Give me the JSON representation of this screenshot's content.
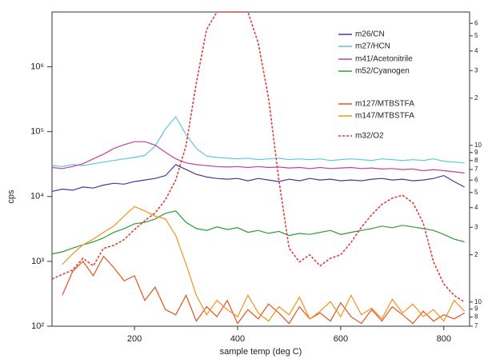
{
  "chart_data": {
    "type": "line",
    "xlabel": "sample temp (deg C)",
    "ylabel": "cps",
    "x": [
      40,
      60,
      80,
      100,
      120,
      140,
      160,
      180,
      200,
      220,
      240,
      260,
      280,
      300,
      320,
      340,
      360,
      380,
      400,
      420,
      440,
      460,
      480,
      500,
      520,
      540,
      560,
      580,
      600,
      620,
      640,
      660,
      680,
      700,
      720,
      740,
      760,
      780,
      800,
      820,
      840
    ],
    "xlim": [
      40,
      850
    ],
    "xticks": [
      200,
      400,
      600,
      800
    ],
    "ylim": [
      100,
      7000000
    ],
    "ylog": true,
    "yticks": [
      {
        "value": 100,
        "label": "10²"
      },
      {
        "value": 1000,
        "label": "10³"
      },
      {
        "value": 10000,
        "label": "10⁴"
      },
      {
        "value": 100000,
        "label": "10⁵"
      },
      {
        "value": 1000000,
        "label": "10⁶"
      }
    ],
    "y2lim": [
      0.7,
      71
    ],
    "y2log": true,
    "y2ticks": [
      {
        "value": 0.7,
        "label": "7"
      },
      {
        "value": 0.8,
        "label": "8"
      },
      {
        "value": 0.9,
        "label": "9"
      },
      {
        "value": 1,
        "label": "10"
      },
      2,
      3,
      4,
      5,
      6,
      7,
      8,
      9,
      {
        "value": 10,
        "label": "10"
      },
      {
        "value": 20,
        "label": "2"
      },
      {
        "value": 30,
        "label": "3"
      },
      {
        "value": 40,
        "label": "4"
      },
      {
        "value": 50,
        "label": "5"
      },
      {
        "value": 60,
        "label": "6"
      }
    ],
    "series": [
      {
        "name": "m26/CN",
        "color": "#3b3d9c",
        "values": [
          12000,
          13000,
          12500,
          14000,
          13500,
          15000,
          16000,
          15500,
          17000,
          18000,
          19000,
          21000,
          31000,
          26000,
          22000,
          20000,
          19000,
          18500,
          19000,
          17500,
          19000,
          18000,
          17000,
          18500,
          17500,
          19000,
          18000,
          18500,
          17500,
          18000,
          17500,
          18500,
          19000,
          18000,
          18500,
          17500,
          18000,
          19000,
          21000,
          17000,
          14000
        ]
      },
      {
        "name": "m27/HCN",
        "color": "#5cc6e0",
        "values": [
          30000,
          29000,
          31000,
          30000,
          32000,
          34000,
          36000,
          38000,
          40000,
          43000,
          60000,
          110000,
          170000,
          90000,
          55000,
          42000,
          40000,
          39000,
          38000,
          39000,
          37000,
          38000,
          39000,
          37000,
          38000,
          37000,
          38000,
          36000,
          37000,
          38000,
          37000,
          36000,
          38000,
          37000,
          36000,
          37000,
          36000,
          38000,
          35000,
          34000,
          33000
        ]
      },
      {
        "name": "m41/Acetonitrile",
        "color": "#c2409e",
        "values": [
          28000,
          27000,
          29000,
          32000,
          38000,
          45000,
          55000,
          63000,
          70000,
          70000,
          62000,
          48000,
          38000,
          33000,
          31000,
          30000,
          29000,
          28500,
          29000,
          28000,
          29000,
          28000,
          28500,
          27500,
          28000,
          27000,
          28000,
          27000,
          27500,
          28000,
          27000,
          27500,
          26500,
          27000,
          26000,
          26500,
          25000,
          26000,
          25000,
          24000,
          23000
        ]
      },
      {
        "name": "m52/Cyanogen",
        "color": "#2f9a3a",
        "values": [
          1300,
          1400,
          1600,
          1800,
          2000,
          2300,
          2800,
          3200,
          3800,
          4000,
          4500,
          5500,
          6000,
          4000,
          3200,
          3000,
          3400,
          3100,
          3300,
          2800,
          3000,
          2700,
          2900,
          2500,
          2700,
          2600,
          2800,
          3000,
          2600,
          2800,
          3000,
          3200,
          3500,
          3300,
          3600,
          3400,
          3200,
          3000,
          2600,
          2200,
          2000
        ]
      },
      {
        "name": "m127/MTBSTFA",
        "color": "#e5531f",
        "values": [
          null,
          300,
          700,
          1000,
          600,
          1200,
          800,
          500,
          600,
          250,
          400,
          180,
          150,
          300,
          120,
          200,
          140,
          250,
          110,
          180,
          130,
          220,
          160,
          110,
          200,
          130,
          160,
          120,
          230,
          140,
          110,
          180,
          120,
          200,
          150,
          110,
          170,
          120,
          150,
          130,
          160
        ]
      },
      {
        "name": "m147/MTBSTFA",
        "color": "#f0921e",
        "values": [
          null,
          900,
          1300,
          1800,
          2200,
          2800,
          3500,
          5000,
          7000,
          6000,
          5000,
          4500,
          2500,
          900,
          300,
          150,
          250,
          180,
          140,
          300,
          160,
          120,
          200,
          150,
          280,
          130,
          170,
          240,
          140,
          300,
          150,
          190,
          130,
          260,
          160,
          220,
          140,
          180,
          120,
          250,
          170
        ]
      },
      {
        "name": "m32/O2",
        "color": "#e23a3a",
        "axis": "y2",
        "linestyle": "dashed",
        "values": [
          1.4,
          1.5,
          1.6,
          1.9,
          1.7,
          2.2,
          2.3,
          2.5,
          2.9,
          3.3,
          3.7,
          4.5,
          6,
          10,
          25,
          55,
          71,
          71,
          71,
          71,
          45,
          20,
          6,
          2.2,
          1.8,
          2.0,
          1.7,
          1.9,
          2.0,
          2.4,
          3.0,
          3.6,
          4.2,
          4.6,
          4.8,
          4.3,
          3.2,
          1.8,
          1.3,
          1.1,
          1.0
        ]
      }
    ]
  }
}
